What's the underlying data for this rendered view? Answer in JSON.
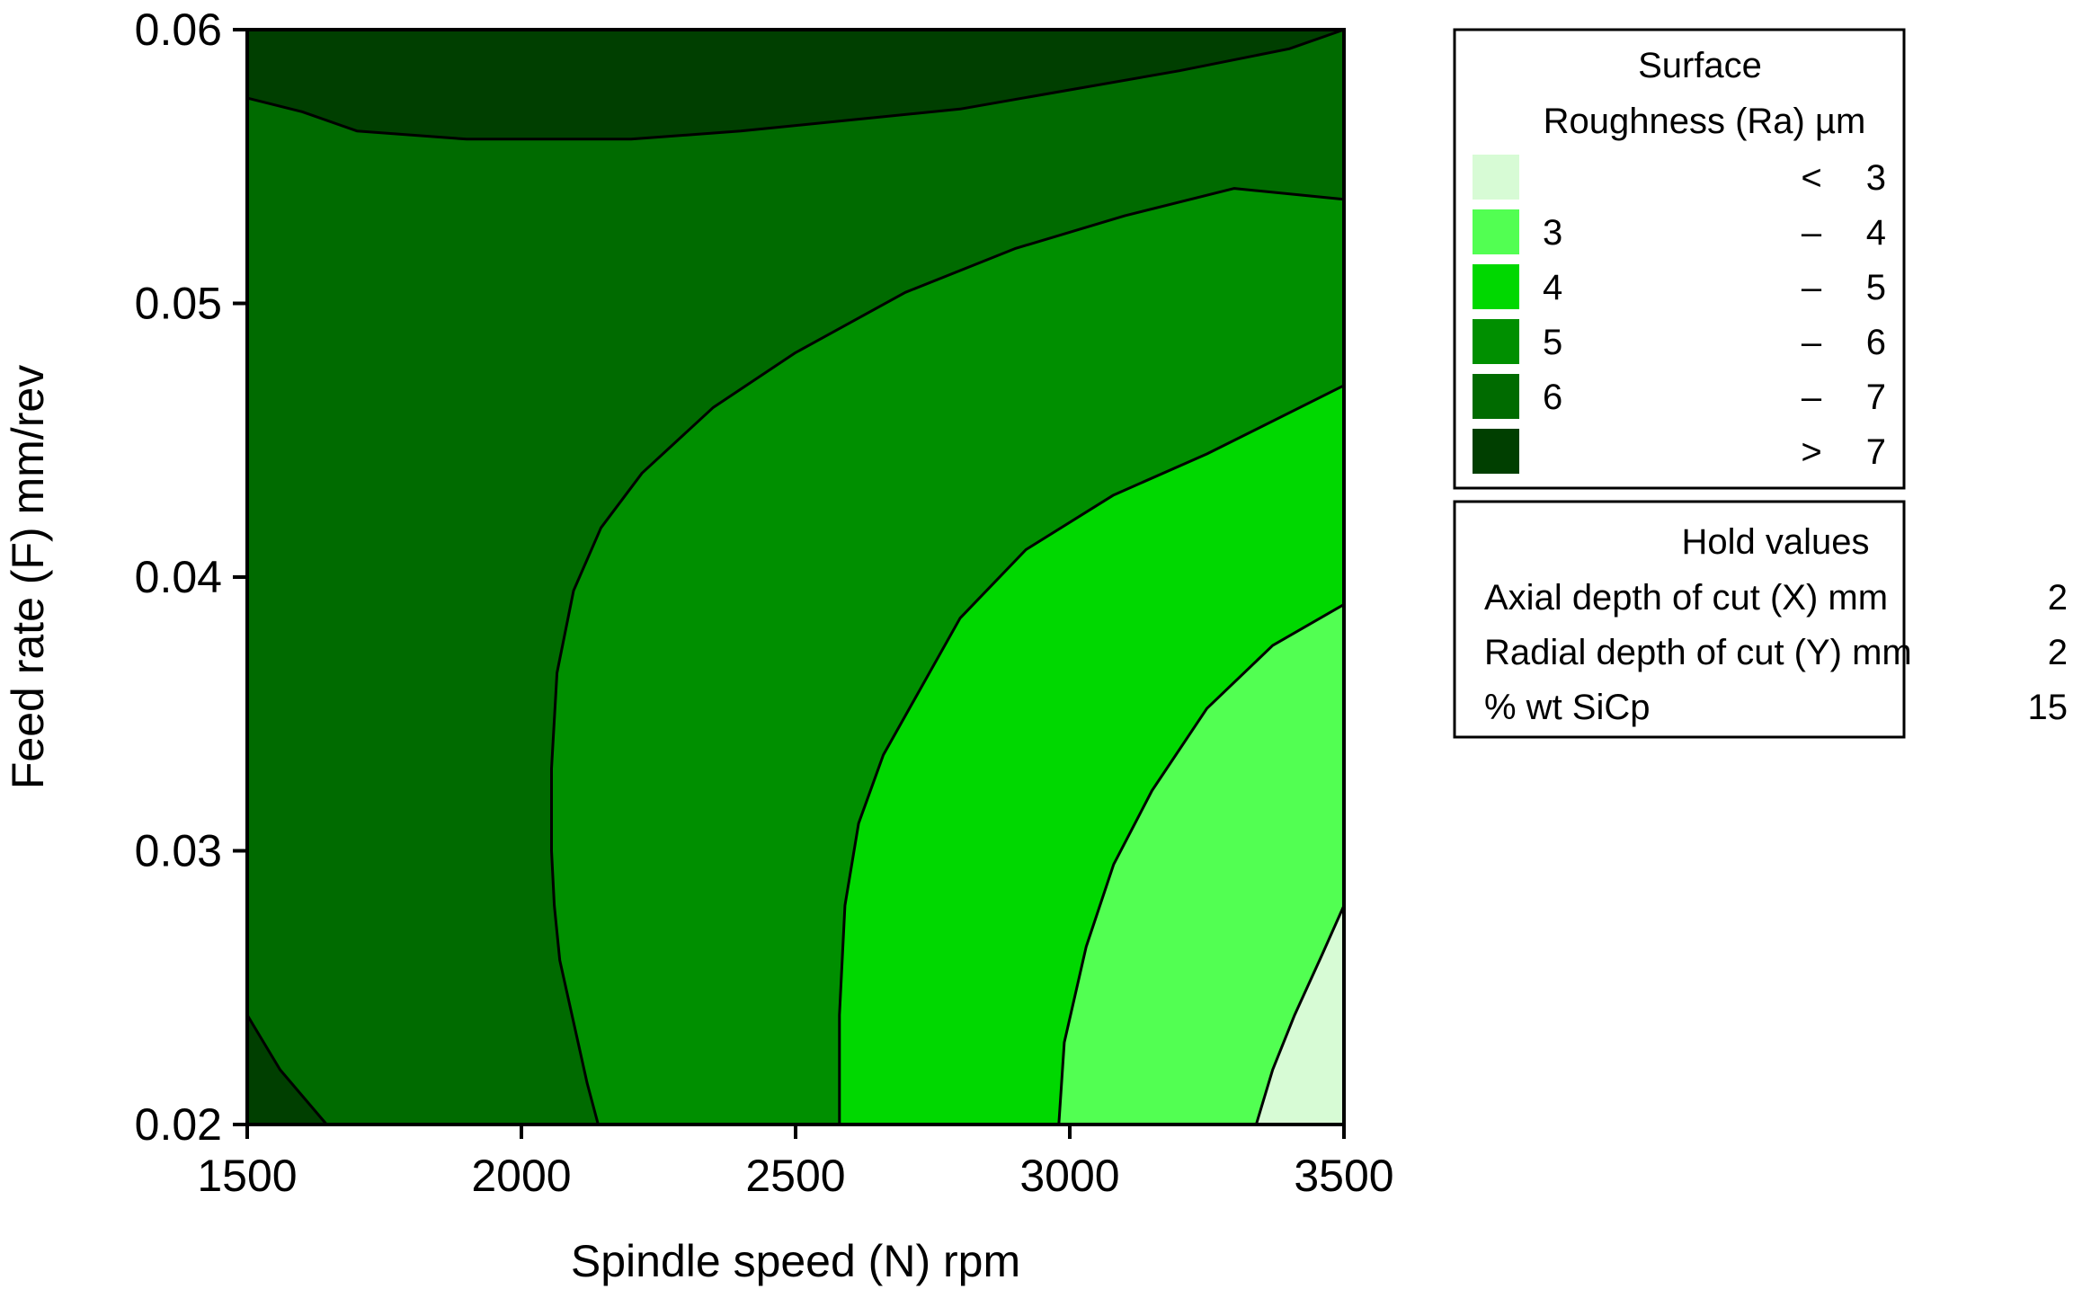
{
  "chart_data": {
    "type": "contour",
    "xlabel": "Spindle speed (N) rpm",
    "ylabel": "Feed rate (F) mm/rev",
    "xlim": [
      1500,
      3500
    ],
    "ylim": [
      0.02,
      0.06
    ],
    "x_ticks": [
      1500,
      2000,
      2500,
      3000,
      3500
    ],
    "x_tick_labels": [
      "1500",
      "2000",
      "2500",
      "3000",
      "3500"
    ],
    "y_ticks": [
      0.02,
      0.03,
      0.04,
      0.05,
      0.06
    ],
    "y_tick_labels": [
      "0.02",
      "0.03",
      "0.04",
      "0.05",
      "0.06"
    ],
    "grid": false,
    "legend_placement": "right",
    "legend": {
      "title_line1": "Surface",
      "title_line2": "Roughness (Ra) µm",
      "entries": [
        {
          "low": "",
          "sep": "<",
          "high": "3",
          "color": "#d7fbd5"
        },
        {
          "low": "3",
          "sep": "–",
          "high": "4",
          "color": "#52ff52"
        },
        {
          "low": "4",
          "sep": "–",
          "high": "5",
          "color": "#00d800"
        },
        {
          "low": "5",
          "sep": "–",
          "high": "6",
          "color": "#008f00"
        },
        {
          "low": "6",
          "sep": "–",
          "high": "7",
          "color": "#006b00"
        },
        {
          "low": "",
          "sep": ">",
          "high": "7",
          "color": "#003f00"
        }
      ]
    },
    "hold_values": {
      "title": "Hold values",
      "rows": [
        {
          "label": "Axial depth of cut (X) mm",
          "value": "2"
        },
        {
          "label": "Radial depth of cut (Y) mm",
          "value": "2"
        },
        {
          "label": "%  wt SiCp",
          "value": "15"
        }
      ]
    },
    "contours": [
      {
        "level": 7,
        "points": [
          [
            1500,
            0.0575
          ],
          [
            1600,
            0.057
          ],
          [
            1700,
            0.0563
          ],
          [
            1900,
            0.056
          ],
          [
            2200,
            0.056
          ],
          [
            2400,
            0.0563
          ],
          [
            2600,
            0.0567
          ],
          [
            2800,
            0.0571
          ],
          [
            3000,
            0.0578
          ],
          [
            3200,
            0.0585
          ],
          [
            3400,
            0.0593
          ],
          [
            3500,
            0.06
          ]
        ]
      },
      {
        "level": 7,
        "points": [
          [
            1500,
            0.024
          ],
          [
            1560,
            0.022
          ],
          [
            1645,
            0.02
          ]
        ]
      },
      {
        "level": 6,
        "points": [
          [
            2140,
            0.02
          ],
          [
            2120,
            0.0215
          ],
          [
            2100,
            0.0233
          ],
          [
            2070,
            0.026
          ],
          [
            2060,
            0.028
          ],
          [
            2055,
            0.03
          ],
          [
            2055,
            0.033
          ],
          [
            2065,
            0.0365
          ],
          [
            2095,
            0.0395
          ],
          [
            2145,
            0.0418
          ],
          [
            2220,
            0.0438
          ],
          [
            2350,
            0.0462
          ],
          [
            2500,
            0.0482
          ],
          [
            2700,
            0.0504
          ],
          [
            2900,
            0.052
          ],
          [
            3100,
            0.0532
          ],
          [
            3300,
            0.0542
          ],
          [
            3500,
            0.0538
          ]
        ]
      },
      {
        "level": 5,
        "points": [
          [
            2580,
            0.02
          ],
          [
            2580,
            0.024
          ],
          [
            2590,
            0.028
          ],
          [
            2615,
            0.031
          ],
          [
            2660,
            0.0335
          ],
          [
            2730,
            0.036
          ],
          [
            2800,
            0.0385
          ],
          [
            2920,
            0.041
          ],
          [
            3080,
            0.043
          ],
          [
            3250,
            0.0445
          ],
          [
            3500,
            0.047
          ]
        ]
      },
      {
        "level": 4,
        "points": [
          [
            2980,
            0.02
          ],
          [
            2990,
            0.023
          ],
          [
            3030,
            0.0265
          ],
          [
            3080,
            0.0295
          ],
          [
            3150,
            0.0322
          ],
          [
            3250,
            0.0352
          ],
          [
            3370,
            0.0375
          ],
          [
            3500,
            0.039
          ]
        ]
      },
      {
        "level": 3,
        "points": [
          [
            3340,
            0.02
          ],
          [
            3370,
            0.022
          ],
          [
            3410,
            0.024
          ],
          [
            3460,
            0.0262
          ],
          [
            3500,
            0.028
          ]
        ]
      }
    ]
  }
}
